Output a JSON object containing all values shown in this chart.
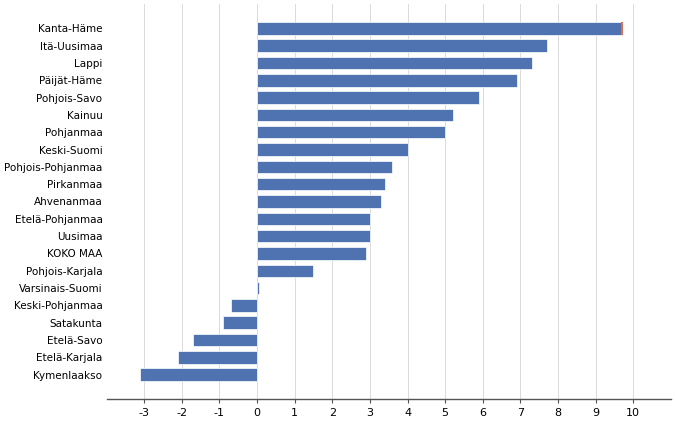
{
  "categories": [
    "Kymenlaakso",
    "Etelä-Karjala",
    "Etelä-Savo",
    "Satakunta",
    "Keski-Pohjanmaa",
    "Varsinais-Suomi",
    "Pohjois-Karjala",
    "KOKO MAA",
    "Uusimaa",
    "Etelä-Pohjanmaa",
    "Ahvenanmaa",
    "Pirkanmaa",
    "Pohjois-Pohjanmaa",
    "Keski-Suomi",
    "Pohjanmaa",
    "Kainuu",
    "Pohjois-Savo",
    "Päijät-Häme",
    "Lappi",
    "Itä-Uusimaa",
    "Kanta-Häme"
  ],
  "values": [
    -3.1,
    -2.1,
    -1.7,
    -0.9,
    -0.7,
    0.05,
    1.5,
    2.9,
    3.0,
    3.0,
    3.3,
    3.4,
    3.6,
    4.0,
    5.0,
    5.2,
    5.9,
    6.9,
    7.3,
    7.7,
    9.7
  ],
  "bar_color": "#4f72b0",
  "reference_line_color": "#d97050",
  "reference_line_value": 9.7,
  "xlim": [
    -4,
    11
  ],
  "xticks": [
    -3,
    -2,
    -1,
    0,
    1,
    2,
    3,
    4,
    5,
    6,
    7,
    8,
    9,
    10
  ],
  "xtick_labels": [
    "-3",
    "-2",
    "-1",
    "0",
    "1",
    "2",
    "3",
    "4",
    "5",
    "6",
    "7",
    "8",
    "9",
    "10"
  ],
  "bg_color": "#ffffff",
  "grid_color": "#cccccc",
  "bar_height": 0.72,
  "label_fontsize": 7.5,
  "tick_fontsize": 8
}
